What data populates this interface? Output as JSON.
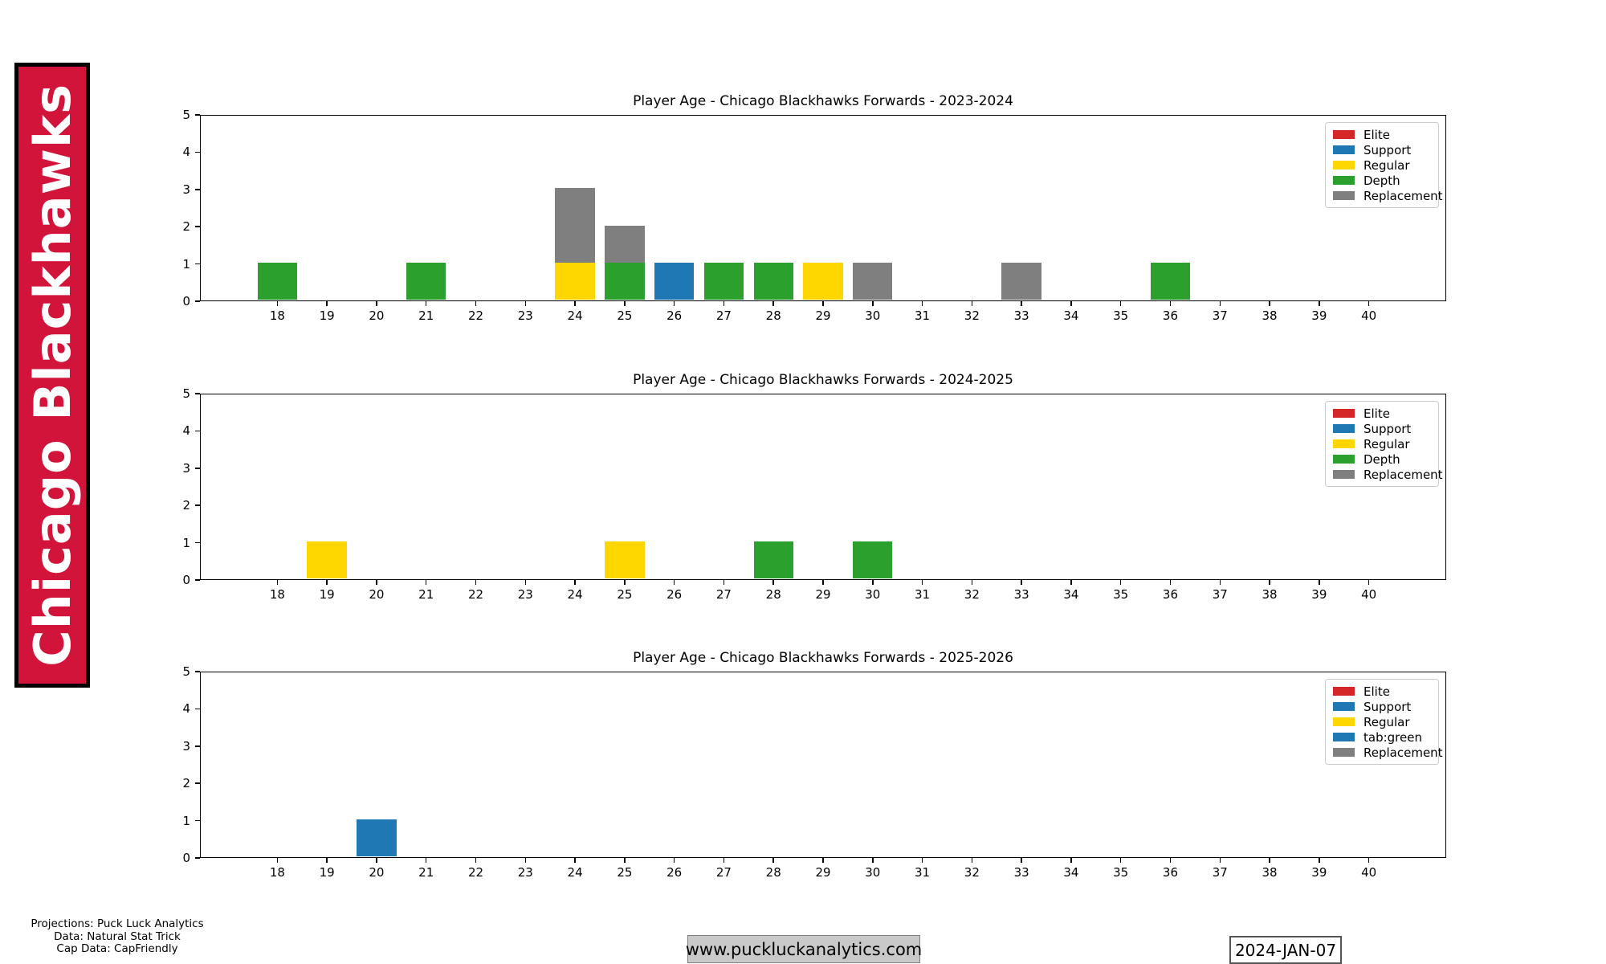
{
  "banner": {
    "text": "Chicago Blackhawks",
    "bg_color": "#d3143a",
    "text_color": "#ffffff"
  },
  "palette": {
    "Elite": "#d62728",
    "Support": "#1f77b4",
    "Regular": "#ffd700",
    "Depth": "#2ca02c",
    "Replacement": "#7f7f7f"
  },
  "chart_data": [
    {
      "type": "bar",
      "stacked": true,
      "title": "Player Age - Chicago Blackhawks Forwards - 2023-2024",
      "xlabel": "",
      "ylabel": "",
      "xlim": [
        16.44,
        41.56
      ],
      "ylim": [
        0,
        5
      ],
      "bar_width": 0.8,
      "grid": false,
      "x_ticks": [
        18,
        19,
        20,
        21,
        22,
        23,
        24,
        25,
        26,
        27,
        28,
        29,
        30,
        31,
        32,
        33,
        34,
        35,
        36,
        37,
        38,
        39,
        40
      ],
      "y_ticks": [
        0,
        1,
        2,
        3,
        4,
        5
      ],
      "legend": {
        "position": "upper right",
        "entries": [
          {
            "label": "Elite",
            "color": "#d62728"
          },
          {
            "label": "Support",
            "color": "#1f77b4"
          },
          {
            "label": "Regular",
            "color": "#ffd700"
          },
          {
            "label": "Depth",
            "color": "#2ca02c"
          },
          {
            "label": "Replacement",
            "color": "#7f7f7f"
          }
        ]
      },
      "bars": [
        {
          "age": 18,
          "stack": [
            {
              "label": "Depth",
              "color": "#2ca02c",
              "value": 1
            }
          ]
        },
        {
          "age": 21,
          "stack": [
            {
              "label": "Depth",
              "color": "#2ca02c",
              "value": 1
            }
          ]
        },
        {
          "age": 24,
          "stack": [
            {
              "label": "Regular",
              "color": "#ffd700",
              "value": 1
            },
            {
              "label": "Replacement",
              "color": "#7f7f7f",
              "value": 2
            }
          ]
        },
        {
          "age": 25,
          "stack": [
            {
              "label": "Depth",
              "color": "#2ca02c",
              "value": 1
            },
            {
              "label": "Replacement",
              "color": "#7f7f7f",
              "value": 1
            }
          ]
        },
        {
          "age": 26,
          "stack": [
            {
              "label": "Support",
              "color": "#1f77b4",
              "value": 1
            }
          ]
        },
        {
          "age": 27,
          "stack": [
            {
              "label": "Depth",
              "color": "#2ca02c",
              "value": 1
            }
          ]
        },
        {
          "age": 28,
          "stack": [
            {
              "label": "Depth",
              "color": "#2ca02c",
              "value": 1
            }
          ]
        },
        {
          "age": 29,
          "stack": [
            {
              "label": "Regular",
              "color": "#ffd700",
              "value": 1
            }
          ]
        },
        {
          "age": 30,
          "stack": [
            {
              "label": "Replacement",
              "color": "#7f7f7f",
              "value": 1
            }
          ]
        },
        {
          "age": 33,
          "stack": [
            {
              "label": "Replacement",
              "color": "#7f7f7f",
              "value": 1
            }
          ]
        },
        {
          "age": 36,
          "stack": [
            {
              "label": "Depth",
              "color": "#2ca02c",
              "value": 1
            }
          ]
        }
      ]
    },
    {
      "type": "bar",
      "stacked": true,
      "title": "Player Age - Chicago Blackhawks Forwards - 2024-2025",
      "xlabel": "",
      "ylabel": "",
      "xlim": [
        16.44,
        41.56
      ],
      "ylim": [
        0,
        5
      ],
      "bar_width": 0.8,
      "grid": false,
      "x_ticks": [
        18,
        19,
        20,
        21,
        22,
        23,
        24,
        25,
        26,
        27,
        28,
        29,
        30,
        31,
        32,
        33,
        34,
        35,
        36,
        37,
        38,
        39,
        40
      ],
      "y_ticks": [
        0,
        1,
        2,
        3,
        4,
        5
      ],
      "legend": {
        "position": "upper right",
        "entries": [
          {
            "label": "Elite",
            "color": "#d62728"
          },
          {
            "label": "Support",
            "color": "#1f77b4"
          },
          {
            "label": "Regular",
            "color": "#ffd700"
          },
          {
            "label": "Depth",
            "color": "#2ca02c"
          },
          {
            "label": "Replacement",
            "color": "#7f7f7f"
          }
        ]
      },
      "bars": [
        {
          "age": 19,
          "stack": [
            {
              "label": "Regular",
              "color": "#ffd700",
              "value": 1
            }
          ]
        },
        {
          "age": 25,
          "stack": [
            {
              "label": "Regular",
              "color": "#ffd700",
              "value": 1
            }
          ]
        },
        {
          "age": 28,
          "stack": [
            {
              "label": "Depth",
              "color": "#2ca02c",
              "value": 1
            }
          ]
        },
        {
          "age": 30,
          "stack": [
            {
              "label": "Depth",
              "color": "#2ca02c",
              "value": 1
            }
          ]
        }
      ]
    },
    {
      "type": "bar",
      "stacked": true,
      "title": "Player Age - Chicago Blackhawks Forwards - 2025-2026",
      "xlabel": "",
      "ylabel": "",
      "xlim": [
        16.44,
        41.56
      ],
      "ylim": [
        0,
        5
      ],
      "bar_width": 0.8,
      "grid": false,
      "x_ticks": [
        18,
        19,
        20,
        21,
        22,
        23,
        24,
        25,
        26,
        27,
        28,
        29,
        30,
        31,
        32,
        33,
        34,
        35,
        36,
        37,
        38,
        39,
        40
      ],
      "y_ticks": [
        0,
        1,
        2,
        3,
        4,
        5
      ],
      "legend": {
        "position": "upper right",
        "entries": [
          {
            "label": "Elite",
            "color": "#d62728"
          },
          {
            "label": "Support",
            "color": "#1f77b4"
          },
          {
            "label": "Regular",
            "color": "#ffd700"
          },
          {
            "label": "tab:green",
            "color": "#1f77b4"
          },
          {
            "label": "Replacement",
            "color": "#7f7f7f"
          }
        ]
      },
      "bars": [
        {
          "age": 20,
          "stack": [
            {
              "label": "Support",
              "color": "#1f77b4",
              "value": 1
            }
          ]
        }
      ]
    }
  ],
  "footer": {
    "credits": [
      "Projections: Puck Luck Analytics",
      "Data: Natural Stat Trick",
      "Cap Data: CapFriendly"
    ],
    "website": "www.puckluckanalytics.com",
    "date": "2024-JAN-07"
  }
}
